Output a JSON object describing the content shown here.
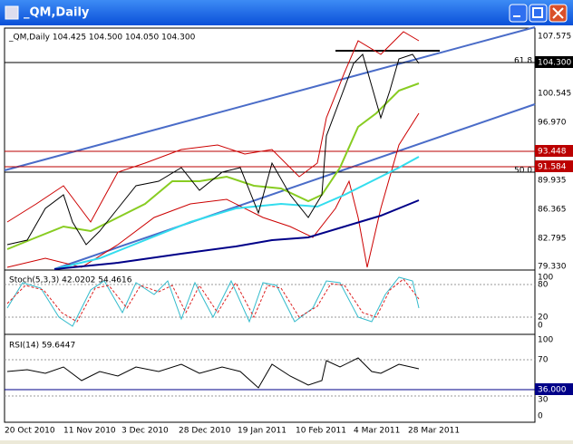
{
  "window": {
    "title": "_QM,Daily"
  },
  "main_panel": {
    "header": "_QM,Daily  104.425 104.500 104.050 104.300",
    "fib_levels": [
      "61.8",
      "50.0"
    ],
    "price_labels": [
      "107.575",
      "100.545",
      "96.970",
      "89.935",
      "86.365",
      "82.795",
      "79.330"
    ],
    "current_price": "104.300",
    "marked_prices": [
      "93.448",
      "91.584"
    ]
  },
  "stoch_panel": {
    "header": "Stoch(5,3,3) 42.0202 54.4616",
    "levels": [
      "100",
      "80",
      "20",
      "0"
    ]
  },
  "rsi_panel": {
    "header": "RSI(14) 59.6447",
    "levels": [
      "100",
      "70",
      "30",
      "0"
    ],
    "marked_level": "36.000"
  },
  "date_axis": [
    "20 Oct 2010",
    "11 Nov 2010",
    "3 Dec 2010",
    "28 Dec 2010",
    "19 Jan 2011",
    "10 Feb 2011",
    "4 Mar 2011",
    "28 Mar 2011"
  ]
}
